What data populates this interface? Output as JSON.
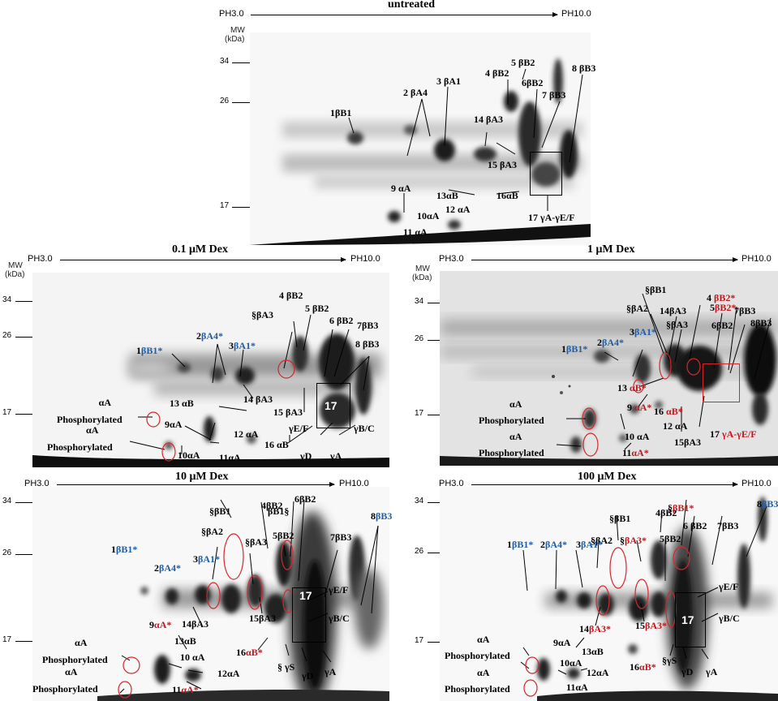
{
  "panels": {
    "untreated": {
      "title": "untreated",
      "ph_left": "PH3.0",
      "ph_right": "PH10.0",
      "mw_title": "MW",
      "mw_unit": "(kDa)",
      "mw": [
        "34",
        "26",
        "17"
      ],
      "labels": {
        "l1": "1βB1",
        "l2": "2 βA4",
        "l3": "3 βA1",
        "l4": "4 βB2",
        "l5": "5 βB2",
        "l6": "6βB2",
        "l7": "7 βB3",
        "l8": "8 βB3",
        "l14": "14 βA3",
        "l15": "15 βA3",
        "l9": "9 αA",
        "l13": "13αB",
        "l16": "16αB",
        "l12": "12 αA",
        "l10": "10αA",
        "l11": "11 αA",
        "l17": "17 γA-γE/F"
      }
    },
    "dex01": {
      "title": "0.1 μM Dex",
      "ph_left": "PH3.0",
      "ph_right": "PH10.0",
      "mw_title": "MW",
      "mw_unit": "(kDa)",
      "mw": [
        "34",
        "26",
        "17"
      ],
      "labels": {
        "l4": "4 βB2",
        "sa3": "§βA3",
        "l5": "5 βB2",
        "l6": "6 βB2",
        "l7": "7βB3",
        "l8": "8 βB3",
        "l1n": "1",
        "l1b": "βB1*",
        "l2n": "2",
        "l2b": "βA4*",
        "l3n": "3",
        "l3b": "βA1*",
        "l14": "14 βA3",
        "l13": "13 αB",
        "l15": "15 βA3",
        "l12": "12 αA",
        "l16": "16 αB",
        "l9": "9αA",
        "l10": "10αA",
        "l11": "11αA",
        "aa1": "αA",
        "ph1": "Phosphorylated",
        "aa2": "αA",
        "ph2": "Phosphorylated",
        "gef": "γE/F",
        "gbc": "γB/C",
        "gd": "γD",
        "ga": "γA",
        "n17": "17"
      }
    },
    "dex1": {
      "title": "1 μM Dex",
      "ph_left": "PH3.0",
      "ph_right": "PH10.0",
      "mw_title": "MW",
      "mw_unit": "(kDa)",
      "mw": [
        "34",
        "26",
        "17"
      ],
      "labels": {
        "sb1": "§βB1",
        "sa2": "§βA2",
        "l14": "14βA3",
        "sa3": "§βA3",
        "l4n": "4",
        "l4r": "βB2*",
        "l5n": "5",
        "l5r": "βB2*",
        "l7": "7βB3",
        "l6": "6βB2",
        "l8": "8βB3",
        "l1n": "1",
        "l1b": "βB1*",
        "l2n": "2",
        "l2b": "βA4*",
        "l3n": "3",
        "l3b": "βA1*",
        "l13n": "13",
        "l13r": "αB*",
        "l9n": "9",
        "l9r": "αA*",
        "l16n": "16",
        "l16r": "αB*",
        "l12": "12 αA",
        "l10": "10 αA",
        "l15": "15βA3",
        "l11n": "11",
        "l11r": "αA*",
        "l17n": "17",
        "l17r": "γA-γE/F",
        "aa1": "αA",
        "ph1": "Phosphorylated",
        "aa2": "αA",
        "ph2": "Phosphorylated"
      }
    },
    "dex10": {
      "title": "10 μM Dex",
      "ph_left": "PH3.0",
      "ph_right": "PH10.0",
      "mw": [
        "34",
        "26",
        "17"
      ],
      "labels": {
        "sb1": "§βB1",
        "l4": "4βB2",
        "sb1b": "βB1§",
        "l6": "6βB2",
        "sa2": "§βA2",
        "sa3": "§βA3",
        "l5": "5βB2",
        "l7": "7βB3",
        "l8n": "8",
        "l8b": "βB3",
        "l1n": "1",
        "l1b": "βB1*",
        "l2n": "2",
        "l2b": "βA4*",
        "l3n": "3",
        "l3b": "βA1*",
        "gef": "γE/F",
        "gbc": "γB/C",
        "l14": "14βA3",
        "l15": "15βA3",
        "l9n": "9",
        "l9r": "αA*",
        "l13": "13αB",
        "l10": "10 αA",
        "l12": "12αA",
        "l16n": "16",
        "l16r": "αB*",
        "gs": "§ γS",
        "gd": "γD",
        "ga": "γA",
        "l11n": "11",
        "l11r": "αA*",
        "n17": "17",
        "aa1": "αA",
        "ph1": "Phosphorylated",
        "aa2": "αA",
        "ph2": "Phosphorylated"
      }
    },
    "dex100": {
      "title": "100 μM Dex",
      "ph_left": "PH3.0",
      "ph_right": "PH10.0",
      "mw": [
        "34",
        "26",
        "17"
      ],
      "labels": {
        "sb1": "§βB1",
        "l4": "4βB2",
        "sb1rn": "§",
        "sb1r": "βB1*",
        "l6": "6 βB2",
        "l7": "7βB3",
        "sa2": "§βA2",
        "sa3n": "§",
        "sa3r": "βA3*",
        "l5": "5βB2",
        "l8n": "8",
        "l8b": "βB3",
        "l1n": "1",
        "l1b": "βB1*",
        "l2n": "2",
        "l2b": "βA4*",
        "l3n": "3",
        "l3b": "βA1*",
        "gef": "γE/F",
        "gbc": "γB/C",
        "l14n": "14",
        "l14r": "βA3*",
        "l15n": "15",
        "l15r": "βA3*",
        "l9": "9αA",
        "l13": "13αB",
        "l10": "10αA",
        "l12": "12αA",
        "l16n": "16",
        "l16r": "αB*",
        "gs": "§γS",
        "gd": "γD",
        "ga": "γA",
        "l11": "11αA",
        "n17": "17",
        "aa1": "αA",
        "ph1": "Phosphorylated",
        "aa2": "αA",
        "ph2": "Phosphorylated"
      }
    }
  }
}
